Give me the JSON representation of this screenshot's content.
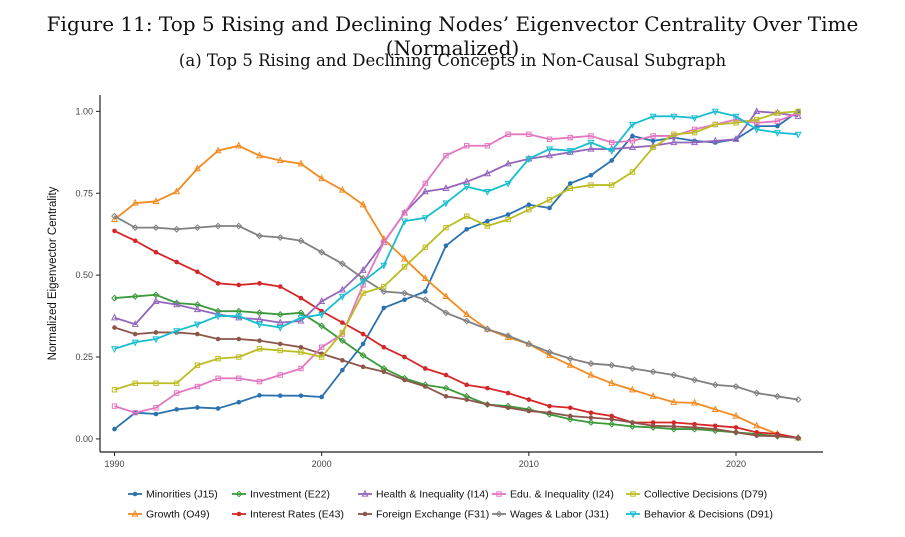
{
  "figure_title": "Figure 11: Top 5 Rising and Declining Nodes’ Eigenvector Centrality Over Time (Normalized)",
  "subtitle": "(a) Top 5 Rising and Declining Concepts in Non-Causal Subgraph",
  "chart_data": {
    "type": "line",
    "title": "(a) Top 5 Rising and Declining Concepts in Non-Causal Subgraph",
    "xlabel": "",
    "ylabel": "Normalized Eigenvector Centrality",
    "xlim": [
      1989.3,
      2024.2
    ],
    "ylim": [
      -0.04,
      1.05
    ],
    "xticks": [
      1990,
      2000,
      2010,
      2020
    ],
    "yticks": [
      0.0,
      0.25,
      0.5,
      0.75,
      1.0
    ],
    "ytick_labels": [
      "0.00",
      "0.25",
      "0.50",
      "0.75",
      "1.00"
    ],
    "grid": false,
    "legend_position": "bottom",
    "x": [
      1990,
      1991,
      1992,
      1993,
      1994,
      1995,
      1996,
      1997,
      1998,
      1999,
      2000,
      2001,
      2002,
      2003,
      2004,
      2005,
      2006,
      2007,
      2008,
      2009,
      2010,
      2011,
      2012,
      2013,
      2014,
      2015,
      2016,
      2017,
      2018,
      2019,
      2020,
      2021,
      2022,
      2023
    ],
    "series": [
      {
        "name": "Minorities (J15)",
        "color": "#2b72b0",
        "marker": "circle",
        "values": [
          0.03,
          0.08,
          0.076,
          0.09,
          0.096,
          0.093,
          0.112,
          0.133,
          0.132,
          0.132,
          0.128,
          0.21,
          0.29,
          0.4,
          0.425,
          0.45,
          0.59,
          0.64,
          0.665,
          0.685,
          0.715,
          0.705,
          0.78,
          0.805,
          0.85,
          0.925,
          0.91,
          0.92,
          0.91,
          0.905,
          0.915,
          0.955,
          0.955,
          1.0
        ]
      },
      {
        "name": "Growth (O49)",
        "color": "#f28b22",
        "marker": "triangle",
        "values": [
          0.67,
          0.72,
          0.725,
          0.755,
          0.825,
          0.88,
          0.895,
          0.865,
          0.85,
          0.84,
          0.795,
          0.76,
          0.715,
          0.61,
          0.55,
          0.49,
          0.435,
          0.38,
          0.335,
          0.31,
          0.29,
          0.255,
          0.225,
          0.195,
          0.17,
          0.15,
          0.13,
          0.112,
          0.11,
          0.09,
          0.07,
          0.04,
          0.015,
          0.003
        ]
      },
      {
        "name": "Investment (E22)",
        "color": "#3a9a3a",
        "marker": "diamond",
        "values": [
          0.43,
          0.435,
          0.44,
          0.415,
          0.41,
          0.39,
          0.39,
          0.385,
          0.38,
          0.385,
          0.345,
          0.3,
          0.255,
          0.215,
          0.185,
          0.165,
          0.155,
          0.13,
          0.105,
          0.1,
          0.09,
          0.075,
          0.06,
          0.05,
          0.045,
          0.038,
          0.035,
          0.03,
          0.03,
          0.025,
          0.02,
          0.015,
          0.008,
          0.003
        ]
      },
      {
        "name": "Interest Rates (E43)",
        "color": "#d62728",
        "marker": "circle",
        "values": [
          0.635,
          0.605,
          0.57,
          0.54,
          0.51,
          0.475,
          0.47,
          0.475,
          0.465,
          0.43,
          0.39,
          0.355,
          0.32,
          0.28,
          0.25,
          0.215,
          0.195,
          0.165,
          0.155,
          0.14,
          0.12,
          0.1,
          0.095,
          0.08,
          0.07,
          0.05,
          0.05,
          0.05,
          0.045,
          0.04,
          0.035,
          0.02,
          0.015,
          0.003
        ]
      },
      {
        "name": "Health & Inequality (I14)",
        "color": "#9467bd",
        "marker": "triangle",
        "values": [
          0.37,
          0.35,
          0.42,
          0.41,
          0.395,
          0.38,
          0.37,
          0.365,
          0.355,
          0.36,
          0.42,
          0.455,
          0.515,
          0.6,
          0.69,
          0.755,
          0.765,
          0.785,
          0.81,
          0.84,
          0.855,
          0.865,
          0.875,
          0.885,
          0.885,
          0.89,
          0.895,
          0.905,
          0.905,
          0.91,
          0.915,
          1.0,
          0.995,
          0.985
        ]
      },
      {
        "name": "Foreign Exchange (F31)",
        "color": "#8c564b",
        "marker": "circle",
        "values": [
          0.34,
          0.32,
          0.325,
          0.325,
          0.32,
          0.305,
          0.305,
          0.3,
          0.29,
          0.28,
          0.26,
          0.24,
          0.22,
          0.205,
          0.18,
          0.16,
          0.13,
          0.12,
          0.105,
          0.095,
          0.085,
          0.08,
          0.07,
          0.065,
          0.06,
          0.05,
          0.04,
          0.038,
          0.035,
          0.03,
          0.02,
          0.01,
          0.008,
          0.003
        ]
      },
      {
        "name": "Edu. & Inequality (I24)",
        "color": "#e377c2",
        "marker": "square",
        "values": [
          0.1,
          0.08,
          0.095,
          0.14,
          0.16,
          0.185,
          0.185,
          0.175,
          0.195,
          0.215,
          0.28,
          0.32,
          0.47,
          0.6,
          0.69,
          0.78,
          0.865,
          0.895,
          0.895,
          0.93,
          0.93,
          0.915,
          0.92,
          0.925,
          0.905,
          0.91,
          0.925,
          0.925,
          0.945,
          0.96,
          0.975,
          0.965,
          0.97,
          0.995
        ]
      },
      {
        "name": "Wages & Labor (J31)",
        "color": "#808080",
        "marker": "diamond",
        "values": [
          0.68,
          0.645,
          0.645,
          0.64,
          0.645,
          0.65,
          0.65,
          0.62,
          0.615,
          0.605,
          0.57,
          0.535,
          0.49,
          0.45,
          0.445,
          0.425,
          0.385,
          0.36,
          0.335,
          0.315,
          0.29,
          0.265,
          0.245,
          0.23,
          0.225,
          0.215,
          0.205,
          0.195,
          0.18,
          0.165,
          0.16,
          0.14,
          0.13,
          0.12
        ]
      },
      {
        "name": "Collective Decisions (D79)",
        "color": "#bcbd22",
        "marker": "square",
        "values": [
          0.15,
          0.17,
          0.17,
          0.17,
          0.225,
          0.245,
          0.25,
          0.275,
          0.27,
          0.265,
          0.25,
          0.325,
          0.445,
          0.465,
          0.525,
          0.585,
          0.645,
          0.68,
          0.65,
          0.67,
          0.7,
          0.73,
          0.765,
          0.775,
          0.775,
          0.815,
          0.89,
          0.93,
          0.935,
          0.96,
          0.965,
          0.975,
          0.995,
          1.0
        ]
      },
      {
        "name": "Behavior & Decisions (D91)",
        "color": "#17becf",
        "marker": "inverted-triangle",
        "values": [
          0.275,
          0.295,
          0.305,
          0.33,
          0.35,
          0.375,
          0.375,
          0.35,
          0.34,
          0.37,
          0.38,
          0.435,
          0.48,
          0.53,
          0.665,
          0.675,
          0.72,
          0.77,
          0.755,
          0.78,
          0.855,
          0.885,
          0.88,
          0.905,
          0.88,
          0.96,
          0.985,
          0.985,
          0.98,
          1.0,
          0.985,
          0.945,
          0.935,
          0.93
        ]
      }
    ],
    "legend_order": [
      "Minorities (J15)",
      "Investment (E22)",
      "Health & Inequality (I14)",
      "Edu. & Inequality (I24)",
      "Collective Decisions (D79)",
      "Growth (O49)",
      "Interest Rates (E43)",
      "Foreign Exchange (F31)",
      "Wages & Labor (J31)",
      "Behavior & Decisions (D91)"
    ]
  }
}
